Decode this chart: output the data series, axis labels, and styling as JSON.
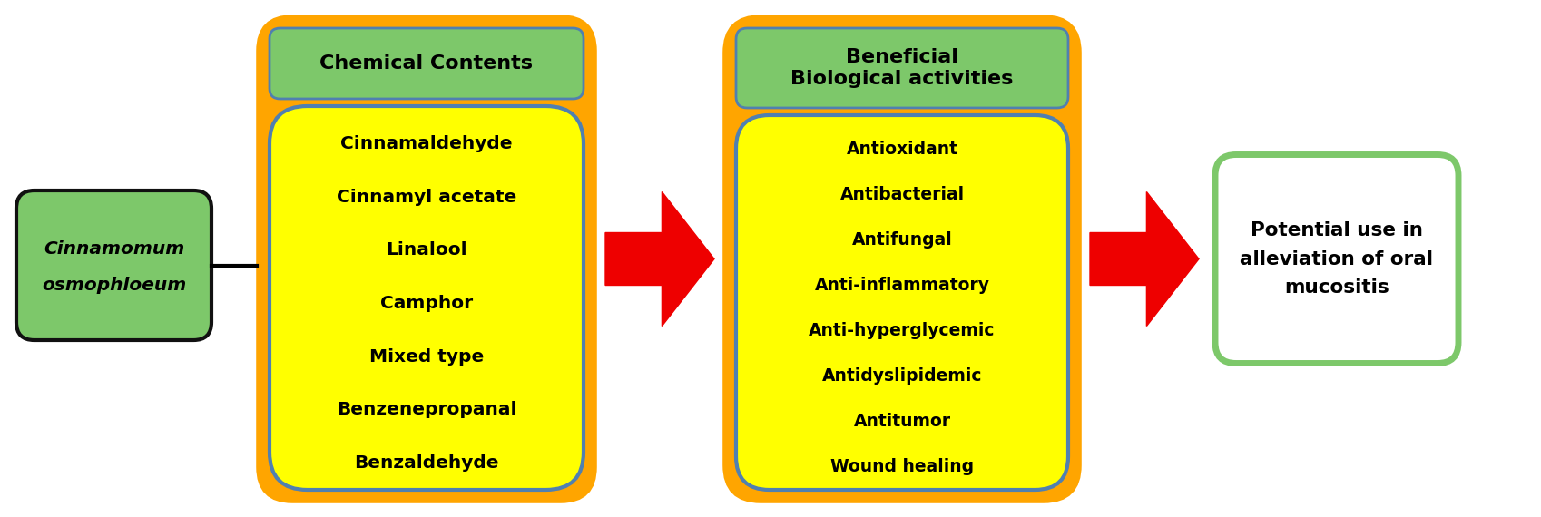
{
  "fig_width": 16.99,
  "fig_height": 5.7,
  "bg_color": "#ffffff",
  "box1_title": "Chemical Contents",
  "box1_items": [
    "Cinnamaldehyde",
    "Cinnamyl acetate",
    "Linalool",
    "Camphor",
    "Mixed type",
    "Benzenepropanal",
    "Benzaldehyde"
  ],
  "box2_title": "Beneficial\nBiological activities",
  "box2_items": [
    "Antioxidant",
    "Antibacterial",
    "Antifungal",
    "Anti-inflammatory",
    "Anti-hyperglycemic",
    "Antidyslipidemic",
    "Antitumor",
    "Wound healing"
  ],
  "box3_text": "Potential use in\nalleviation of oral\nmucositis",
  "left_label_line1": "Cinnamomum",
  "left_label_line2": "osmophloeum",
  "color_outer_border": "#FFA500",
  "color_inner_border": "#5080B0",
  "color_inner_fill": "#FFFF00",
  "color_header_fill": "#7DC86A",
  "color_header_border": "#5080B0",
  "color_left_box_fill": "#7DC86A",
  "color_left_box_border": "#111111",
  "color_right_box_fill": "#ffffff",
  "color_right_box_border": "#7DC86A",
  "color_arrow": "#EE0000",
  "color_text_dark": "#000000"
}
